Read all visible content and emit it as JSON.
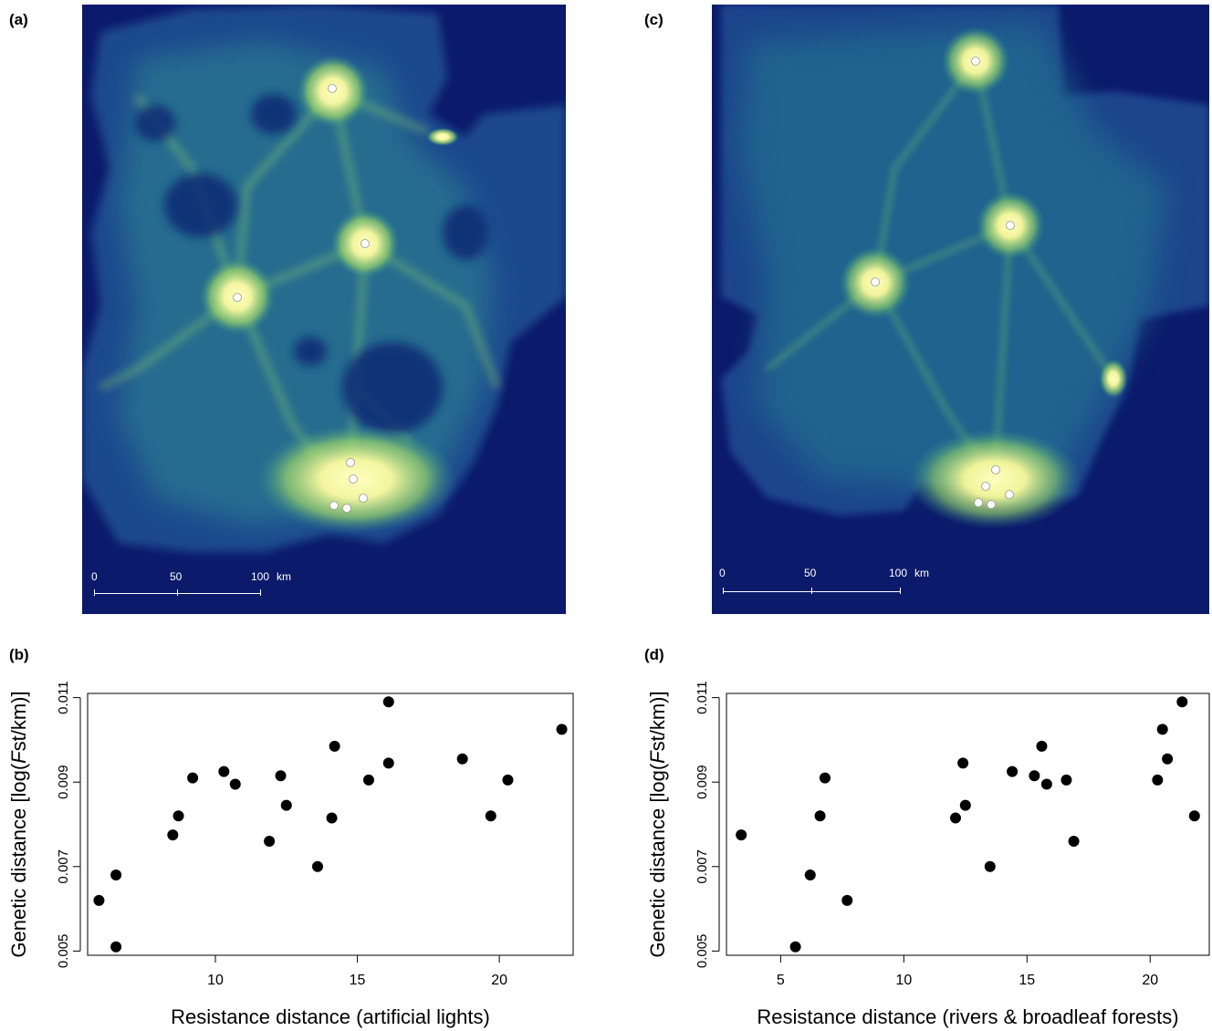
{
  "panel_labels": [
    "(a)",
    "(b)",
    "(c)",
    "(d)"
  ],
  "colors": {
    "map_background": "#0c1a6b",
    "map_low": "#1c3a8c",
    "map_mid": "#2f8e8a",
    "map_high": "#b8e36a",
    "map_peak": "#ffffb0",
    "point": "#000000"
  },
  "maps": [
    {
      "panel": "(a)",
      "scale_labels": [
        "0",
        "50",
        "100",
        "km"
      ],
      "sites": 8
    },
    {
      "panel": "(c)",
      "scale_labels": [
        "0",
        "50",
        "100",
        "km"
      ],
      "sites": 8
    }
  ],
  "chart_data": [
    {
      "panel": "(b)",
      "type": "scatter",
      "xlabel": "Resistance distance (artificial lights)",
      "ylabel_parts": [
        "Genetic distance [log(",
        "F",
        "st/km)]"
      ],
      "xlim": [
        5.5,
        22.6
      ],
      "ylim": [
        0.0049,
        0.0111
      ],
      "xticks": [
        10,
        15,
        20
      ],
      "yticks": [
        0.005,
        0.007,
        0.009,
        0.011
      ],
      "xtick_labels": [
        "10",
        "15",
        "20"
      ],
      "ytick_labels": [
        "0.005",
        "0.007",
        "0.009",
        "0.011"
      ],
      "points": [
        [
          5.9,
          0.0062
        ],
        [
          6.5,
          0.0068
        ],
        [
          6.5,
          0.0051
        ],
        [
          8.5,
          0.00775
        ],
        [
          8.7,
          0.0082
        ],
        [
          9.2,
          0.0091
        ],
        [
          10.3,
          0.00925
        ],
        [
          10.7,
          0.00895
        ],
        [
          11.9,
          0.0076
        ],
        [
          12.3,
          0.00915
        ],
        [
          12.5,
          0.00845
        ],
        [
          13.6,
          0.007
        ],
        [
          14.1,
          0.00815
        ],
        [
          14.2,
          0.00985
        ],
        [
          15.4,
          0.00905
        ],
        [
          16.1,
          0.0109
        ],
        [
          16.1,
          0.00945
        ],
        [
          18.7,
          0.00955
        ],
        [
          19.7,
          0.0082
        ],
        [
          20.3,
          0.00905
        ],
        [
          22.2,
          0.01025
        ]
      ]
    },
    {
      "panel": "(d)",
      "type": "scatter",
      "xlabel": "Resistance distance (rivers & broadleaf forests)",
      "ylabel_parts": [
        "Genetic distance [log(",
        "F",
        "st/km)]"
      ],
      "xlim": [
        2.8,
        22.4
      ],
      "ylim": [
        0.0049,
        0.0111
      ],
      "xticks": [
        5,
        10,
        15,
        20
      ],
      "yticks": [
        0.005,
        0.007,
        0.009,
        0.011
      ],
      "xtick_labels": [
        "5",
        "10",
        "15",
        "20"
      ],
      "ytick_labels": [
        "0.005",
        "0.007",
        "0.009",
        "0.011"
      ],
      "points": [
        [
          3.4,
          0.00775
        ],
        [
          5.6,
          0.0051
        ],
        [
          6.2,
          0.0068
        ],
        [
          6.6,
          0.0082
        ],
        [
          6.8,
          0.0091
        ],
        [
          7.7,
          0.0062
        ],
        [
          12.1,
          0.00815
        ],
        [
          12.4,
          0.00945
        ],
        [
          12.5,
          0.00845
        ],
        [
          13.5,
          0.007
        ],
        [
          14.4,
          0.00925
        ],
        [
          15.3,
          0.00915
        ],
        [
          15.6,
          0.00985
        ],
        [
          15.8,
          0.00895
        ],
        [
          16.6,
          0.00905
        ],
        [
          16.9,
          0.0076
        ],
        [
          20.3,
          0.00905
        ],
        [
          20.5,
          0.01025
        ],
        [
          20.7,
          0.00955
        ],
        [
          21.3,
          0.0109
        ],
        [
          21.8,
          0.0082
        ]
      ]
    }
  ]
}
